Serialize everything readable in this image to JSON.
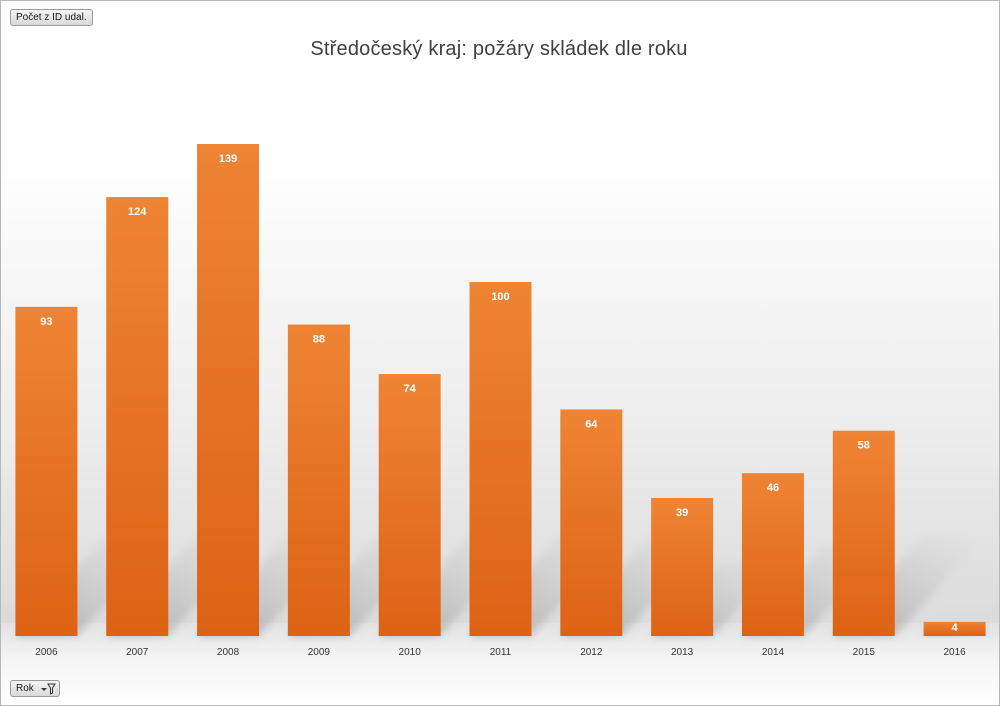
{
  "pivot": {
    "value_field": "Počet z ID udal.",
    "axis_field": "Rok"
  },
  "chart_data": {
    "type": "bar",
    "title": "Středočeský kraj: požáry skládek dle roku",
    "categories": [
      "2006",
      "2007",
      "2008",
      "2009",
      "2010",
      "2011",
      "2012",
      "2013",
      "2014",
      "2015",
      "2016"
    ],
    "series": [
      {
        "name": "Počet z ID udal.",
        "values": [
          93,
          124,
          139,
          88,
          74,
          100,
          64,
          39,
          46,
          58,
          4
        ]
      }
    ],
    "xlabel": "",
    "ylabel": "",
    "ylim": [
      0,
      139
    ],
    "grid": false,
    "legend": "none",
    "data_labels": true,
    "colors": {
      "bar_top": "#ef8435",
      "bar_bottom": "#dd6214",
      "label": "#ffffff",
      "shadow": "#a8a8a8"
    }
  }
}
